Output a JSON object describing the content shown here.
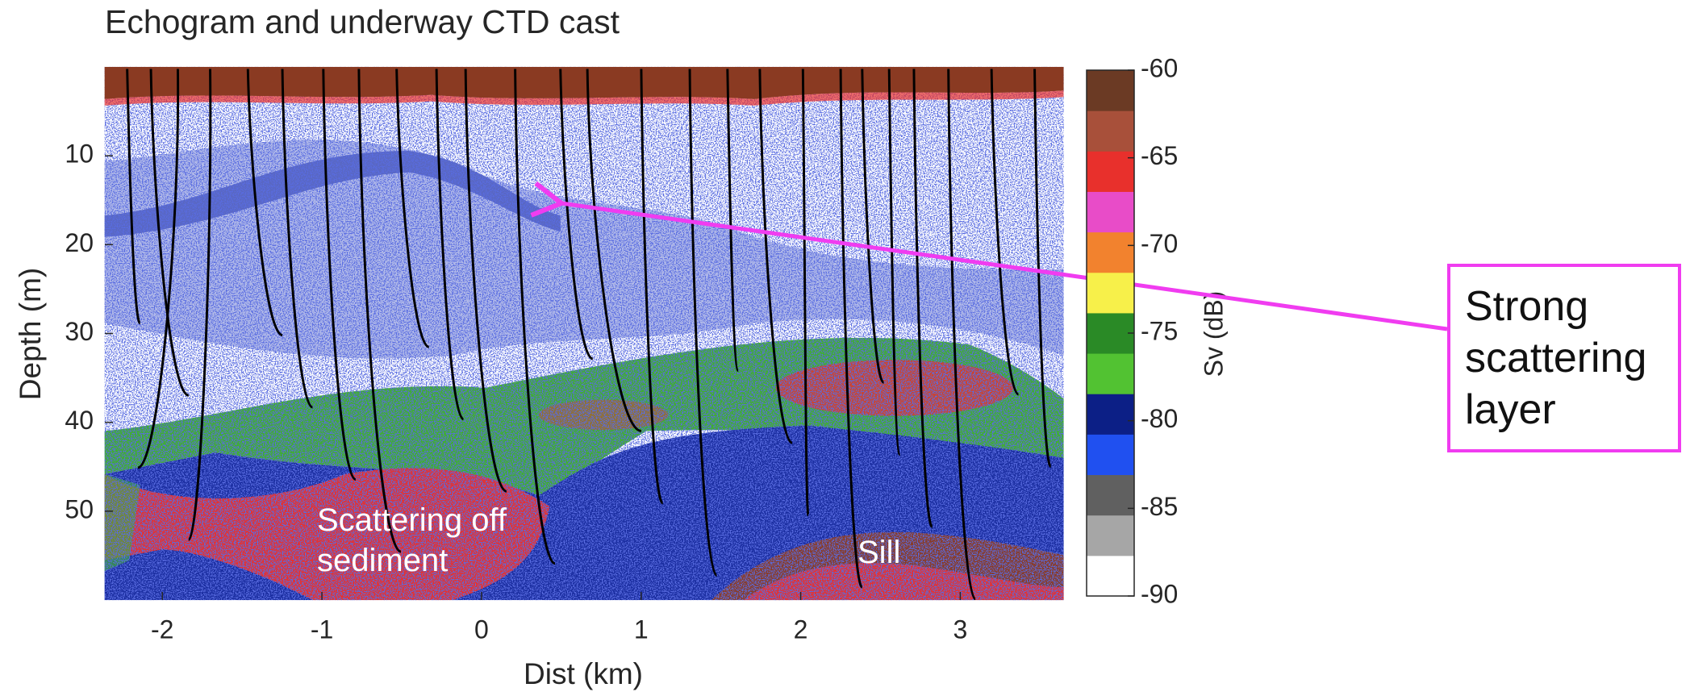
{
  "chart_data": {
    "type": "heatmap",
    "title": "Echogram and underway CTD cast",
    "x_label": "Dist (km)",
    "y_label": "Depth (m)",
    "xlim": [
      -2.36,
      3.65
    ],
    "xticks": [
      -2,
      -1,
      0,
      1,
      2,
      3
    ],
    "ylim": [
      60,
      0
    ],
    "yticks": [
      10,
      20,
      30,
      40,
      50
    ],
    "colorbar": {
      "label": "Sv (dB)",
      "lim": [
        -90,
        -60
      ],
      "ticks": [
        -60,
        -65,
        -70,
        -75,
        -80,
        -85,
        -90
      ],
      "colors": [
        "#ffffff",
        "#a6a6a6",
        "#606060",
        "#2050f0",
        "#0c1f86",
        "#52c232",
        "#2a8a26",
        "#f7f04a",
        "#f2822e",
        "#e84cc8",
        "#e8302c",
        "#a8503a",
        "#6b3a24"
      ]
    },
    "annotations": [
      "Scattering off sediment",
      "Sill"
    ],
    "callout": "Strong scattering layer"
  }
}
